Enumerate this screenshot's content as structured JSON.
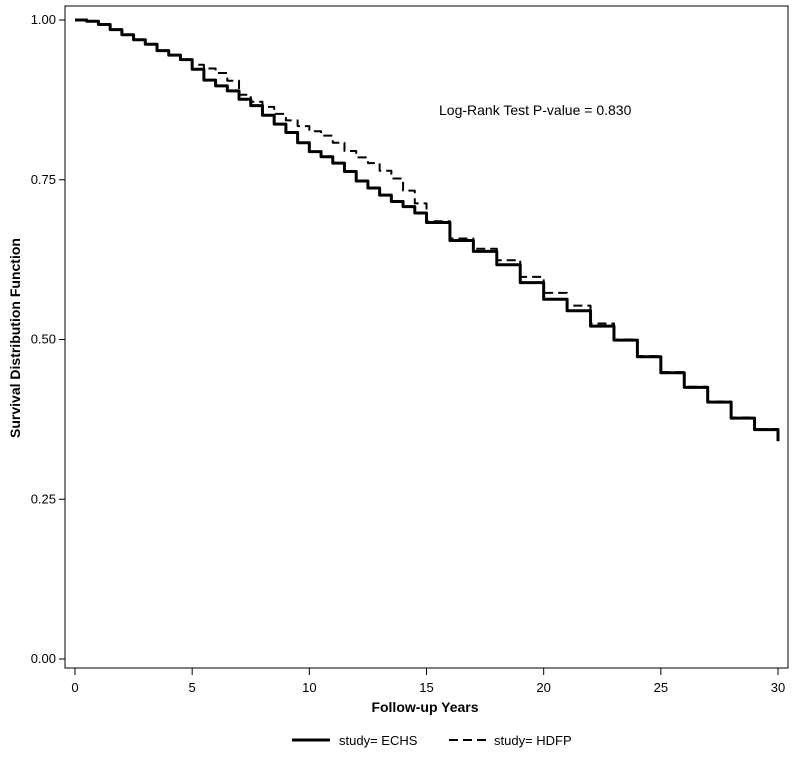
{
  "chart_data": {
    "type": "line",
    "title": "",
    "xlabel": "Follow-up Years",
    "ylabel": "Survival Distribution Function",
    "xlim": [
      0,
      30
    ],
    "ylim": [
      0,
      1
    ],
    "x_ticks": [
      0,
      5,
      10,
      15,
      20,
      25,
      30
    ],
    "x_tick_labels": [
      "0",
      "5",
      "10",
      "15",
      "20",
      "25",
      "30"
    ],
    "y_ticks": [
      0,
      0.25,
      0.5,
      0.75,
      1
    ],
    "y_tick_labels": [
      "0.00",
      "0.25",
      "0.50",
      "0.75",
      "1.00"
    ],
    "grid": false,
    "legend_position": "bottom",
    "annotation": "Log-Rank Test P-value = 0.830",
    "series": [
      {
        "name": "study= ECHS",
        "line_style": "solid",
        "color": "#000000",
        "x": [
          0,
          0.5,
          1,
          1.5,
          2,
          2.5,
          3,
          3.5,
          4,
          4.5,
          5,
          5.5,
          6,
          6.5,
          7,
          7.5,
          8,
          8.5,
          9,
          9.5,
          10,
          10.5,
          11,
          11.5,
          12,
          12.5,
          13,
          13.5,
          14,
          14.5,
          15,
          16,
          17,
          18,
          19,
          20,
          21,
          22,
          23,
          24,
          25,
          26,
          27,
          28,
          29,
          30
        ],
        "y": [
          1.0,
          0.998,
          0.993,
          0.985,
          0.977,
          0.969,
          0.962,
          0.952,
          0.945,
          0.938,
          0.923,
          0.906,
          0.897,
          0.889,
          0.876,
          0.866,
          0.851,
          0.837,
          0.824,
          0.808,
          0.794,
          0.786,
          0.776,
          0.763,
          0.748,
          0.737,
          0.726,
          0.716,
          0.708,
          0.698,
          0.683,
          0.655,
          0.638,
          0.617,
          0.589,
          0.563,
          0.545,
          0.521,
          0.499,
          0.473,
          0.448,
          0.425,
          0.402,
          0.377,
          0.359,
          0.341
        ]
      },
      {
        "name": "study= HDFP",
        "line_style": "dashed",
        "color": "#000000",
        "x": [
          0,
          0.5,
          1,
          1.5,
          2,
          2.5,
          3,
          3.5,
          4,
          4.5,
          5,
          5.5,
          6,
          6.5,
          7,
          7.5,
          8,
          8.5,
          9,
          9.5,
          10,
          10.5,
          11,
          11.5,
          12,
          12.5,
          13,
          13.5,
          14,
          14.5,
          15,
          16,
          17,
          18,
          19,
          20,
          21,
          22,
          23,
          24,
          25,
          26,
          27,
          28,
          29,
          30
        ],
        "y": [
          1.0,
          0.998,
          0.993,
          0.985,
          0.977,
          0.969,
          0.962,
          0.952,
          0.945,
          0.938,
          0.93,
          0.924,
          0.917,
          0.905,
          0.883,
          0.872,
          0.864,
          0.853,
          0.843,
          0.834,
          0.826,
          0.819,
          0.808,
          0.795,
          0.785,
          0.776,
          0.764,
          0.752,
          0.733,
          0.713,
          0.685,
          0.658,
          0.642,
          0.624,
          0.598,
          0.573,
          0.553,
          0.525,
          0.5,
          0.474,
          0.449,
          0.426,
          0.403,
          0.378,
          0.36,
          0.342
        ]
      }
    ]
  }
}
